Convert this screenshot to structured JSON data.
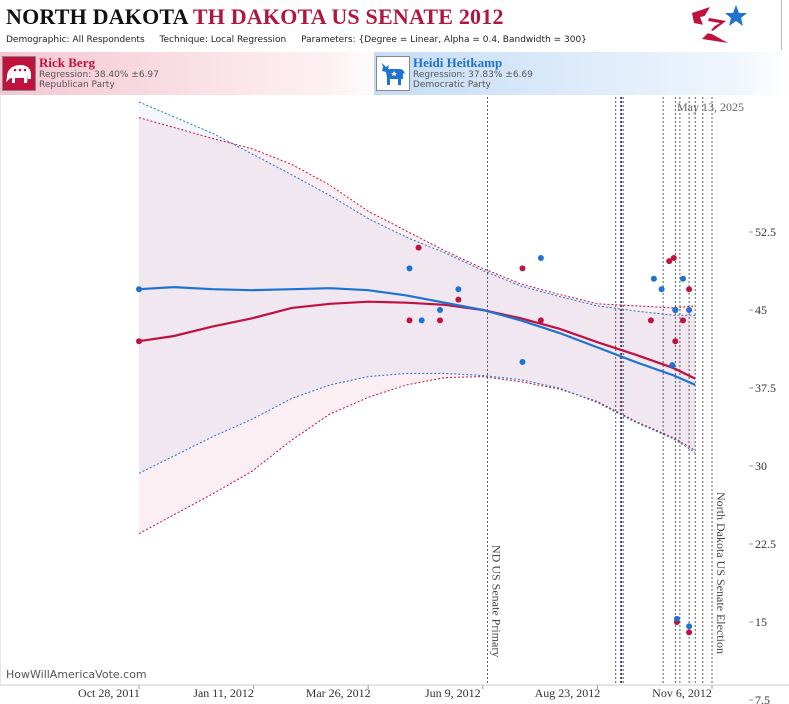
{
  "header": {
    "state": "NORTH DAKOTA",
    "race": "TH DAKOTA US SENATE 2012",
    "params": [
      {
        "key": "Demographic:",
        "value": "All Respondents"
      },
      {
        "key": "Technique:",
        "value": "Local Regression"
      },
      {
        "key": "Parameters:",
        "value": "{Degree = Linear, Alpha = 0.4, Bandwidth = 300}"
      }
    ]
  },
  "candidates": {
    "rep": {
      "name": "Rick Berg",
      "regression": "Regression: 38.40% ±6.97",
      "party": "Republican Party",
      "icon": "republican-elephant-icon",
      "color": "#c0123f"
    },
    "dem": {
      "name": "Heidi Heitkamp",
      "regression": "Regression: 37.83% ±6.69",
      "party": "Democratic Party",
      "icon": "democrat-donkey-icon",
      "color": "#1e73d0"
    }
  },
  "date_label": "May 13, 2025",
  "watermark": "HowWillAmericaVote.com",
  "chart_data": {
    "type": "scatter",
    "x_ticks": [
      "Oct 28, 2011",
      "Jan 11, 2012",
      "Mar 26, 2012",
      "Jun 9, 2012",
      "Aug 23, 2012",
      "Nov 6, 2012"
    ],
    "x_range": [
      "2011-10-04",
      "2012-11-28"
    ],
    "ylim": [
      0,
      60
    ],
    "y_ticks": [
      7.5,
      15,
      22.5,
      30,
      37.5,
      45,
      52.5
    ],
    "grid": false,
    "events": [
      {
        "date": "2012-06-12",
        "label": "ND US Senate Primary"
      },
      {
        "date": "2012-11-06",
        "label": "North Dakota US Senate Election"
      }
    ],
    "poll_lines": [
      "2012-09-04",
      "2012-09-07",
      "2012-09-08",
      "2012-10-05",
      "2012-10-13",
      "2012-10-16",
      "2012-10-22",
      "2012-10-26",
      "2012-10-31"
    ],
    "series": [
      {
        "name": "Rick Berg",
        "color": "#c0123f",
        "points": [
          {
            "x": "2011-10-28",
            "y": 42
          },
          {
            "x": "2012-04-22",
            "y": 44
          },
          {
            "x": "2012-04-28",
            "y": 51
          },
          {
            "x": "2012-05-12",
            "y": 44
          },
          {
            "x": "2012-05-24",
            "y": 46
          },
          {
            "x": "2012-07-05",
            "y": 49
          },
          {
            "x": "2012-07-17",
            "y": 44
          },
          {
            "x": "2012-09-27",
            "y": 44
          },
          {
            "x": "2012-10-09",
            "y": 49.7
          },
          {
            "x": "2012-10-12",
            "y": 50
          },
          {
            "x": "2012-10-13",
            "y": 42
          },
          {
            "x": "2012-10-13",
            "y": 45
          },
          {
            "x": "2012-10-14",
            "y": 15
          },
          {
            "x": "2012-10-18",
            "y": 44
          },
          {
            "x": "2012-10-22",
            "y": 47
          },
          {
            "x": "2012-10-22",
            "y": 14
          }
        ],
        "trend": {
          "x": [
            "2011-10-28",
            "2011-11-20",
            "2011-12-15",
            "2012-01-10",
            "2012-02-05",
            "2012-03-01",
            "2012-03-26",
            "2012-04-20",
            "2012-05-15",
            "2012-06-09",
            "2012-07-04",
            "2012-07-29",
            "2012-08-23",
            "2012-09-17",
            "2012-10-12",
            "2012-10-26"
          ],
          "y": [
            42.0,
            42.5,
            43.4,
            44.2,
            45.2,
            45.6,
            45.8,
            45.7,
            45.5,
            45.0,
            44.2,
            43.2,
            41.9,
            40.7,
            39.4,
            38.4
          ]
        },
        "upper": {
          "x": [
            "2011-10-28",
            "2011-12-15",
            "2012-01-10",
            "2012-02-05",
            "2012-03-01",
            "2012-03-26",
            "2012-04-20",
            "2012-05-15",
            "2012-06-09",
            "2012-07-04",
            "2012-07-29",
            "2012-08-23",
            "2012-09-17",
            "2012-10-12",
            "2012-10-26"
          ],
          "y": [
            63.5,
            61.5,
            60.5,
            59.0,
            57.0,
            54.5,
            52.6,
            50.7,
            49.0,
            47.5,
            46.5,
            45.6,
            45.4,
            45.2,
            45.4
          ]
        },
        "lower": {
          "x": [
            "2011-10-28",
            "2011-12-15",
            "2012-01-10",
            "2012-02-05",
            "2012-03-01",
            "2012-03-26",
            "2012-04-20",
            "2012-05-15",
            "2012-06-09",
            "2012-07-04",
            "2012-07-29",
            "2012-08-23",
            "2012-09-17",
            "2012-10-12",
            "2012-10-26"
          ],
          "y": [
            23.5,
            27.3,
            29.5,
            32.5,
            35.0,
            36.6,
            37.8,
            38.5,
            38.6,
            38.1,
            37.4,
            36.2,
            34.3,
            32.7,
            31.5
          ]
        }
      },
      {
        "name": "Heidi Heitkamp",
        "color": "#1e73d0",
        "points": [
          {
            "x": "2011-10-28",
            "y": 47
          },
          {
            "x": "2012-04-22",
            "y": 49
          },
          {
            "x": "2012-04-30",
            "y": 44
          },
          {
            "x": "2012-05-12",
            "y": 45
          },
          {
            "x": "2012-05-24",
            "y": 47
          },
          {
            "x": "2012-07-05",
            "y": 40
          },
          {
            "x": "2012-07-17",
            "y": 50
          },
          {
            "x": "2012-09-29",
            "y": 48
          },
          {
            "x": "2012-10-04",
            "y": 47
          },
          {
            "x": "2012-10-11",
            "y": 39.7
          },
          {
            "x": "2012-10-13",
            "y": 45
          },
          {
            "x": "2012-10-14",
            "y": 15.3
          },
          {
            "x": "2012-10-18",
            "y": 48
          },
          {
            "x": "2012-10-22",
            "y": 45
          },
          {
            "x": "2012-10-22",
            "y": 14.6
          }
        ],
        "trend": {
          "x": [
            "2011-10-28",
            "2011-11-20",
            "2011-12-15",
            "2012-01-10",
            "2012-02-05",
            "2012-03-01",
            "2012-03-26",
            "2012-04-20",
            "2012-05-15",
            "2012-06-09",
            "2012-07-04",
            "2012-07-29",
            "2012-08-23",
            "2012-09-17",
            "2012-10-12",
            "2012-10-26"
          ],
          "y": [
            47.0,
            47.2,
            47.0,
            46.9,
            47.0,
            47.1,
            46.9,
            46.4,
            45.7,
            45.0,
            44.0,
            42.8,
            41.4,
            40.0,
            38.7,
            37.8
          ]
        },
        "upper": {
          "x": [
            "2011-10-28",
            "2011-12-15",
            "2012-01-10",
            "2012-02-05",
            "2012-03-01",
            "2012-03-26",
            "2012-04-20",
            "2012-05-15",
            "2012-06-09",
            "2012-07-04",
            "2012-07-29",
            "2012-08-23",
            "2012-09-17",
            "2012-10-12",
            "2012-10-26"
          ],
          "y": [
            65.0,
            62.0,
            60.0,
            58.0,
            56.0,
            53.8,
            52.0,
            50.5,
            48.8,
            47.3,
            46.3,
            45.4,
            44.9,
            44.5,
            44.5
          ]
        },
        "lower": {
          "x": [
            "2011-10-28",
            "2011-12-15",
            "2012-01-10",
            "2012-02-05",
            "2012-03-01",
            "2012-03-26",
            "2012-04-20",
            "2012-05-15",
            "2012-06-09",
            "2012-07-04",
            "2012-07-29",
            "2012-08-23",
            "2012-09-17",
            "2012-10-12",
            "2012-10-26"
          ],
          "y": [
            29.3,
            32.8,
            34.5,
            36.5,
            37.8,
            38.6,
            38.9,
            38.9,
            38.7,
            38.3,
            37.5,
            36.1,
            34.2,
            32.6,
            31.3
          ]
        }
      }
    ]
  }
}
